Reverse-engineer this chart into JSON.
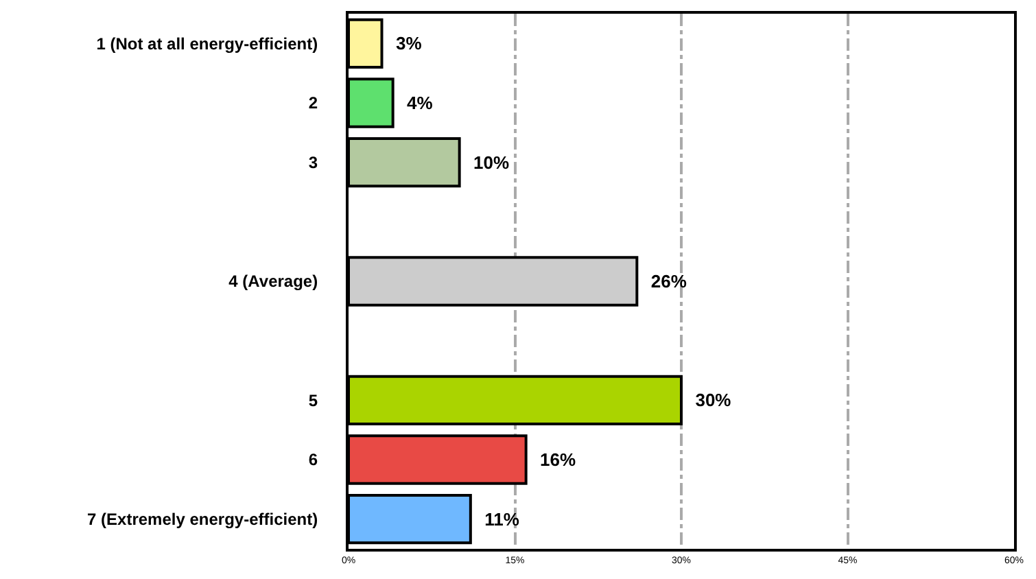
{
  "chart_data": {
    "type": "bar",
    "orientation": "horizontal",
    "categories": [
      "1 (Not at all energy-efficient)",
      "2",
      "3",
      null,
      "4 (Average)",
      null,
      "5",
      "6",
      "7 (Extremely energy-efficient)"
    ],
    "values": [
      3,
      4,
      10,
      null,
      26,
      null,
      30,
      16,
      11
    ],
    "colors": [
      "#fff59d",
      "#5ee06e",
      "#b3c99f",
      null,
      "#cccccc",
      null,
      "#aad400",
      "#e84a45",
      "#6fb8ff"
    ],
    "value_labels": [
      "3%",
      "4%",
      "10%",
      null,
      "26%",
      null,
      "30%",
      "16%",
      "11%"
    ],
    "xlim": [
      0,
      60
    ],
    "xticks": [
      {
        "value": 0,
        "label": "0%"
      },
      {
        "value": 15,
        "label": "15%"
      },
      {
        "value": 30,
        "label": "30%"
      },
      {
        "value": 45,
        "label": "45%"
      },
      {
        "value": 60,
        "label": "60%"
      }
    ],
    "grid": "x"
  }
}
